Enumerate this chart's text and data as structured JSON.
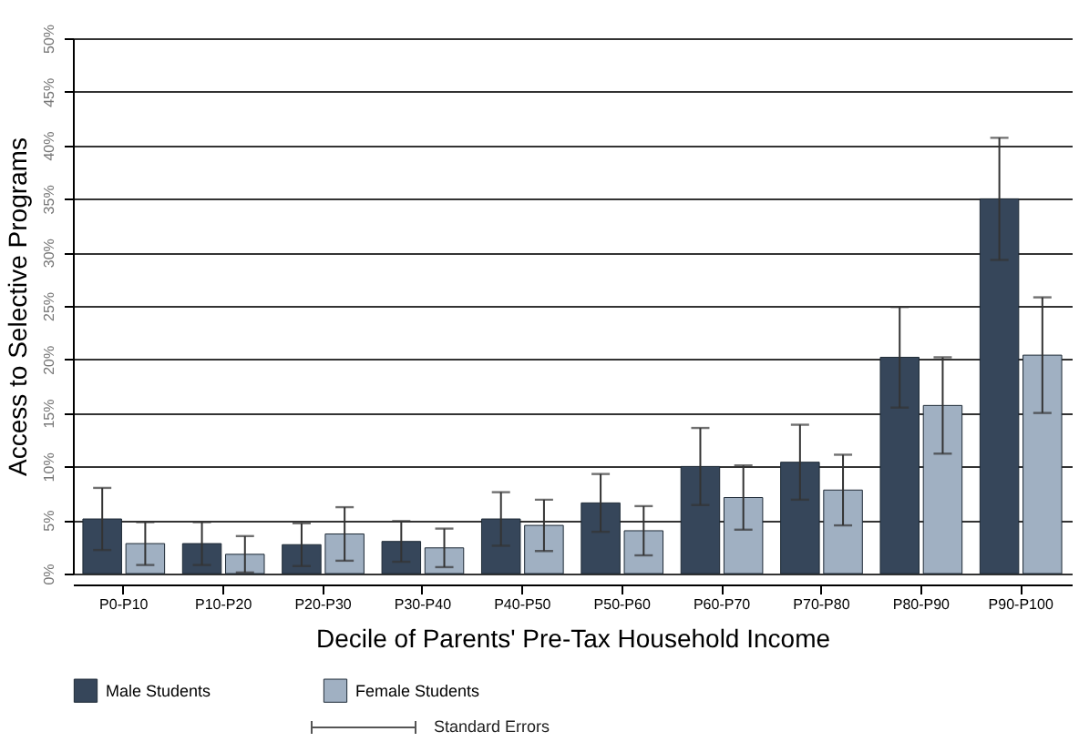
{
  "chart_data": {
    "type": "bar",
    "xlabel": "Decile of Parents' Pre-Tax Household Income",
    "ylabel": "Access to Selective Programs",
    "categories": [
      "P0-P10",
      "P10-P20",
      "P20-P30",
      "P30-P40",
      "P40-P50",
      "P50-P60",
      "P60-P70",
      "P70-P80",
      "P80-P90",
      "P90-P100"
    ],
    "series": [
      {
        "name": "Male Students",
        "color": "#36465a",
        "values": [
          5.1,
          2.8,
          2.7,
          3.0,
          5.1,
          6.6,
          10.0,
          10.4,
          20.2,
          35.0
        ],
        "errors": [
          2.9,
          2.0,
          2.0,
          1.9,
          2.5,
          2.7,
          3.6,
          3.5,
          4.7,
          5.7
        ]
      },
      {
        "name": "Female Students",
        "color": "#a0b0c2",
        "values": [
          2.8,
          1.8,
          3.7,
          2.4,
          4.5,
          4.0,
          7.1,
          7.8,
          15.7,
          20.4
        ],
        "errors": [
          2.0,
          1.7,
          2.5,
          1.8,
          2.4,
          2.3,
          3.0,
          3.3,
          4.5,
          5.4
        ]
      }
    ],
    "ylim": [
      0,
      50
    ],
    "yticks": [
      {
        "value": 0,
        "label": "0%"
      },
      {
        "value": 5,
        "label": "5%"
      },
      {
        "value": 10,
        "label": "10%"
      },
      {
        "value": 15,
        "label": "15%"
      },
      {
        "value": 20,
        "label": "20%"
      },
      {
        "value": 25,
        "label": "25%"
      },
      {
        "value": 30,
        "label": "30%"
      },
      {
        "value": 35,
        "label": "35%"
      },
      {
        "value": 40,
        "label": "40%"
      },
      {
        "value": 45,
        "label": "45%"
      },
      {
        "value": 50,
        "label": "50%"
      }
    ],
    "grid": "y",
    "legend": "bottom",
    "annotations": [
      "Standard Errors"
    ]
  }
}
